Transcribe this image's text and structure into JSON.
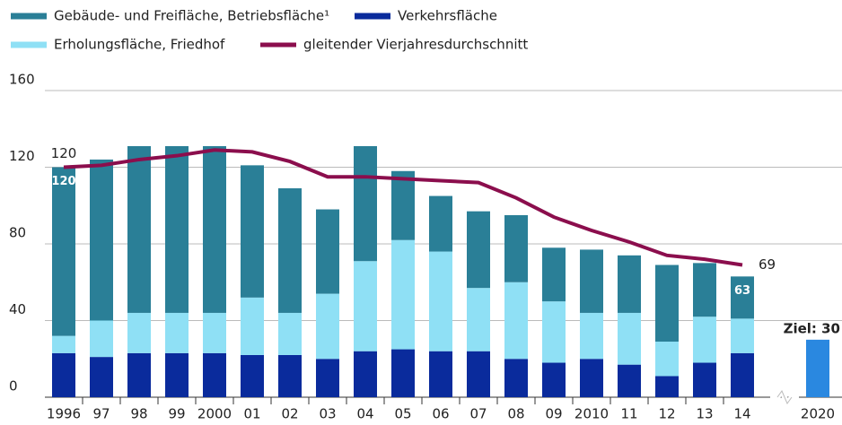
{
  "chart_data": {
    "type": "bar",
    "categories": [
      "1996",
      "97",
      "98",
      "99",
      "2000",
      "01",
      "02",
      "03",
      "04",
      "05",
      "06",
      "07",
      "08",
      "09",
      "2010",
      "11",
      "12",
      "13",
      "14",
      "2020"
    ],
    "series": [
      {
        "name": "Gebäude- und Freifläche, Betriebsfläche¹",
        "color": "#2a7f97",
        "values": [
          88,
          84,
          87,
          87,
          87,
          69,
          65,
          44,
          60,
          36,
          29,
          40,
          35,
          28,
          33,
          30,
          40,
          28,
          22,
          null
        ]
      },
      {
        "name": "Verkehrsfläche",
        "color": "#0a2b9c",
        "values": [
          23,
          21,
          23,
          23,
          23,
          22,
          22,
          20,
          24,
          25,
          24,
          24,
          20,
          18,
          20,
          17,
          11,
          18,
          23,
          null
        ]
      },
      {
        "name": "Erholungsfläche, Friedhof",
        "color": "#8fe0f5",
        "values": [
          9,
          19,
          21,
          21,
          21,
          30,
          22,
          34,
          47,
          57,
          52,
          33,
          40,
          32,
          24,
          27,
          18,
          24,
          18,
          null
        ]
      },
      {
        "name": "gleitender Vierjahresdurchschnitt",
        "type": "line",
        "color": "#8b0e4d",
        "values": [
          120,
          121,
          124,
          126,
          129,
          128,
          123,
          115,
          115,
          114,
          113,
          112,
          104,
          94,
          87,
          81,
          74,
          72,
          69,
          null
        ],
        "value_labels": [
          "120",
          null,
          null,
          null,
          null,
          null,
          null,
          null,
          null,
          null,
          null,
          null,
          null,
          null,
          null,
          null,
          null,
          null,
          "69",
          null
        ]
      }
    ],
    "total_labels": [
      "120",
      null,
      null,
      null,
      null,
      null,
      null,
      null,
      null,
      null,
      null,
      null,
      null,
      null,
      null,
      null,
      null,
      null,
      "63",
      null
    ],
    "target": {
      "value": 30,
      "label": "Ziel: 30",
      "color": "#2a88e0"
    },
    "ylim": [
      0,
      160
    ],
    "yticks": [
      0,
      40,
      80,
      120,
      160
    ],
    "grid": true
  }
}
